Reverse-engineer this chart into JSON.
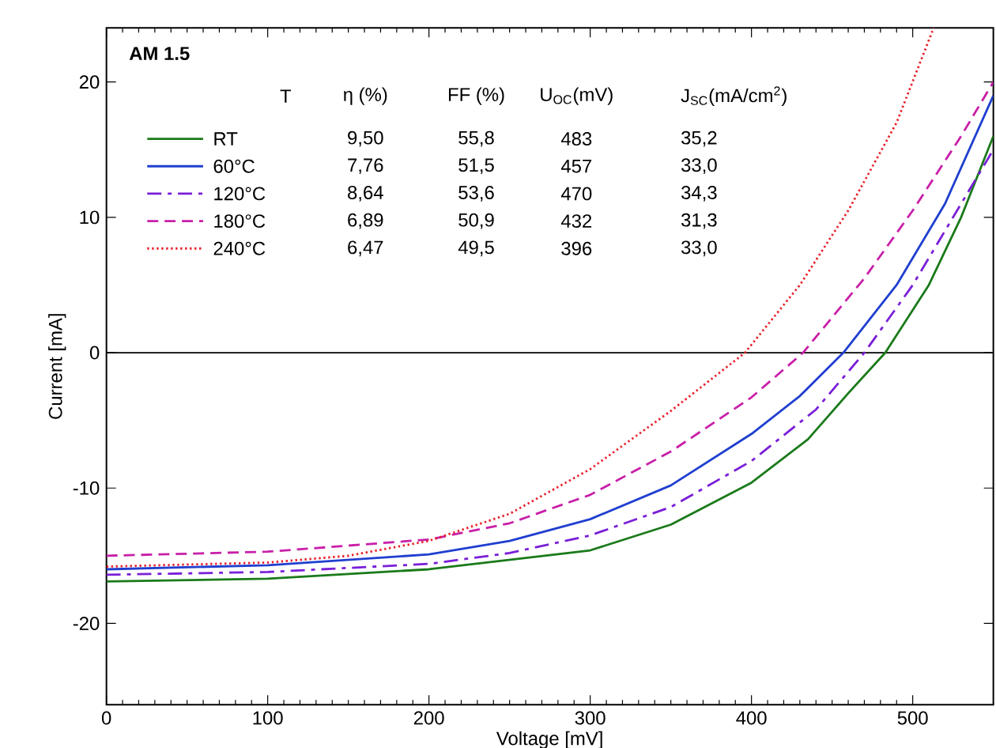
{
  "chart_data": {
    "type": "line",
    "xlabel": "Voltage [mV]",
    "ylabel": "Current [mA]",
    "legend_title": "AM 1.5",
    "xlim": [
      0,
      550
    ],
    "ylim": [
      -26,
      24
    ],
    "xticks": [
      0,
      100,
      200,
      300,
      400,
      500
    ],
    "yticks": [
      -20,
      -10,
      0,
      10,
      20
    ],
    "grid": false,
    "legend": "top left",
    "ref_lines": [
      {
        "axis": "y",
        "value": 0,
        "color": "#000000"
      }
    ],
    "annotations": [
      "T",
      "η (%)",
      "FF (%)",
      "U$_{OC}$(mV)",
      "J$_{SC}$(mA/cm$^{2}$)",
      "9,50",
      "55,8",
      "483",
      "35,2",
      "7,76",
      "51,5",
      "457",
      "33,0",
      "8,64",
      "53,6",
      "470",
      "34,3",
      "6,89",
      "50,9",
      "432",
      "31,3",
      "6,47",
      "49,5",
      "396",
      "33,0"
    ],
    "series": [
      {
        "name": "RT",
        "color": "#1a7a1a",
        "line_style": "solid",
        "x": [
          0,
          100,
          200,
          300,
          350,
          400,
          435,
          460,
          483,
          510,
          530,
          550
        ],
        "values": [
          -16.9,
          -16.7,
          -16.0,
          -14.6,
          -12.7,
          -9.6,
          -6.4,
          -3.0,
          0,
          5,
          10,
          16
        ]
      },
      {
        "name": "60°C",
        "color": "#1f3fd0",
        "line_style": "solid",
        "x": [
          0,
          100,
          200,
          250,
          300,
          350,
          400,
          430,
          457,
          490,
          520,
          550
        ],
        "values": [
          -16.0,
          -15.7,
          -14.9,
          -13.9,
          -12.3,
          -9.8,
          -6.0,
          -3.2,
          0,
          5,
          11,
          19
        ]
      },
      {
        "name": "120°C",
        "color": "#7a1fd8",
        "line_style": "dashdot",
        "x": [
          0,
          100,
          200,
          250,
          300,
          350,
          400,
          440,
          470,
          500,
          525,
          550
        ],
        "values": [
          -16.4,
          -16.2,
          -15.6,
          -14.8,
          -13.5,
          -11.4,
          -8.0,
          -4.2,
          0,
          5,
          10,
          15
        ]
      },
      {
        "name": "180°C",
        "color": "#c81fa8",
        "line_style": "dashed",
        "x": [
          0,
          100,
          200,
          250,
          300,
          350,
          400,
          432,
          470,
          500,
          530,
          550
        ],
        "values": [
          -15.0,
          -14.7,
          -13.8,
          -12.6,
          -10.5,
          -7.3,
          -3.3,
          0,
          5.5,
          10.5,
          16,
          20
        ]
      },
      {
        "name": "240°C",
        "color": "#e8202a",
        "line_style": "dotted",
        "x": [
          0,
          100,
          150,
          200,
          250,
          300,
          350,
          396,
          430,
          460,
          490,
          513
        ],
        "values": [
          -15.8,
          -15.5,
          -15.0,
          -13.9,
          -11.9,
          -8.6,
          -4.3,
          0,
          5,
          10.5,
          17,
          24
        ]
      }
    ]
  }
}
